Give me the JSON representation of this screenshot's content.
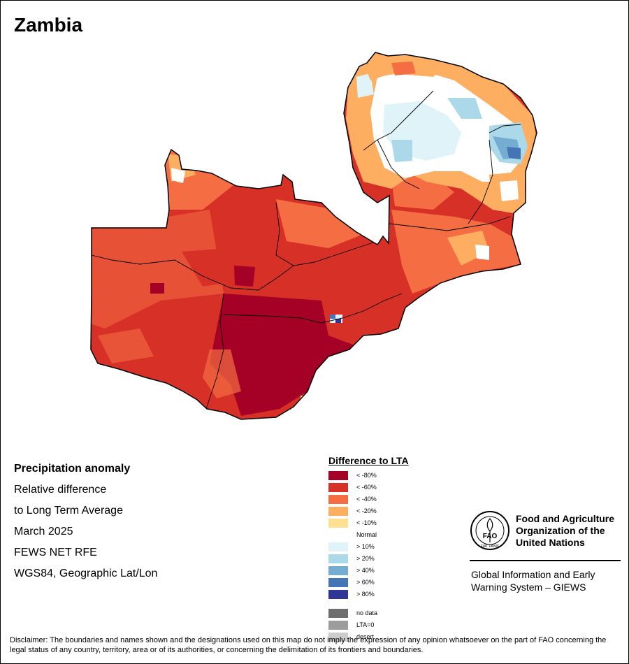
{
  "map": {
    "title": "Zambia"
  },
  "info": {
    "heading": "Precipitation anomaly",
    "line1": "Relative difference",
    "line2": "to Long Term Average",
    "period": "March 2025",
    "source": "FEWS NET RFE",
    "projection": "WGS84, Geographic Lat/Lon"
  },
  "legend": {
    "title": "Difference to LTA",
    "items": [
      {
        "label": "< -80%",
        "color": "#a50026"
      },
      {
        "label": "< -60%",
        "color": "#d73027"
      },
      {
        "label": "< -40%",
        "color": "#f46d43"
      },
      {
        "label": "< -20%",
        "color": "#fdae61"
      },
      {
        "label": "< -10%",
        "color": "#fee090"
      },
      {
        "label": "Normal",
        "color": "#ffffff"
      },
      {
        "label": "> 10%",
        "color": "#e0f3f8"
      },
      {
        "label": "> 20%",
        "color": "#abd9e9"
      },
      {
        "label": "> 40%",
        "color": "#74add1"
      },
      {
        "label": "> 60%",
        "color": "#4575b4"
      },
      {
        "label": "> 80%",
        "color": "#313695"
      },
      {
        "label": "no data",
        "color": "#6e6e6e"
      },
      {
        "label": "LTA=0",
        "color": "#9c9c9c"
      },
      {
        "label": "desert",
        "color": "#cccccc"
      }
    ]
  },
  "org": {
    "name": "Food and Agriculture\nOrganization of the\nUnited Nations",
    "logo_text": "FAO",
    "logo_motto": "FIAT PANIS",
    "system": "Global Information and Early\nWarning System – GIEWS"
  },
  "disclaimer": "Disclaimer: The boundaries and names shown and the designations used on this map do not imply the expression of any opinion whatsoever on the part of FAO concerning the legal status of any country, territory, area or of its authorities, or concerning the delimitation of its frontiers and boundaries."
}
